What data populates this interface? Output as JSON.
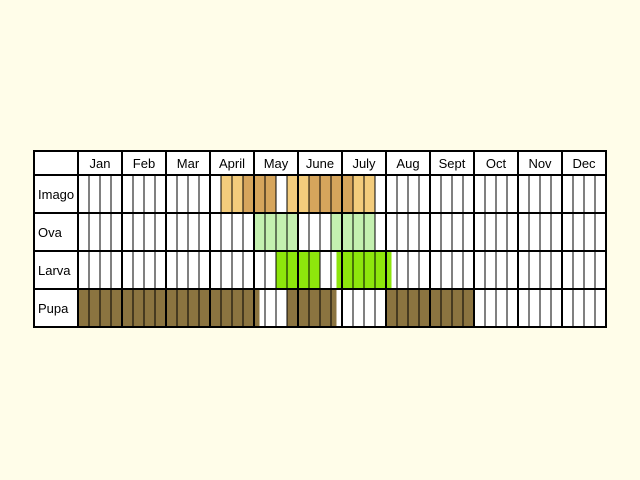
{
  "chart_data": {
    "type": "table",
    "title": "",
    "months": [
      "Jan",
      "Feb",
      "Mar",
      "April",
      "May",
      "June",
      "July",
      "Aug",
      "Sept",
      "Oct",
      "Nov",
      "Dec"
    ],
    "segments_per_month": 4,
    "background_color": "#fffde9",
    "cell_color": "#ffffff",
    "series": [
      {
        "name": "Imago",
        "bands": [
          {
            "start": 13,
            "end": 14,
            "color": "#f3cc7c"
          },
          {
            "start": 14,
            "end": 15,
            "color": "#f3cc7c"
          },
          {
            "start": 15,
            "end": 18,
            "color": "#d6a55c"
          },
          {
            "start": 19,
            "end": 21,
            "color": "#f3cc7c"
          },
          {
            "start": 21,
            "end": 25,
            "color": "#d6a55c"
          },
          {
            "start": 25,
            "end": 27,
            "color": "#f3cc7c"
          }
        ]
      },
      {
        "name": "Ova",
        "bands": [
          {
            "start": 16,
            "end": 20,
            "color": "#c4f0b0"
          },
          {
            "start": 23,
            "end": 27,
            "color": "#c4f0b0"
          }
        ]
      },
      {
        "name": "Larva",
        "bands": [
          {
            "start": 18,
            "end": 22,
            "color": "#8ee60c"
          },
          {
            "start": 23.5,
            "end": 28.5,
            "color": "#8ee60c"
          }
        ]
      },
      {
        "name": "Pupa",
        "bands": [
          {
            "start": 0,
            "end": 16.5,
            "color": "#8b7440"
          },
          {
            "start": 19,
            "end": 23.5,
            "color": "#8b7440"
          },
          {
            "start": 28,
            "end": 36,
            "color": "#8b7440"
          }
        ]
      }
    ]
  }
}
